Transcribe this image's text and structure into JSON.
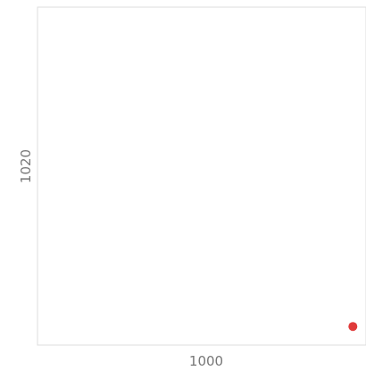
{
  "chart_data": {
    "type": "scatter",
    "title": "",
    "xlabel": "1000",
    "ylabel": "1020",
    "grid": false,
    "legend": "none",
    "colors": {
      "point": "#e03a3a",
      "frame": "#dddddd",
      "label": "#777777"
    },
    "xlim": [
      0,
      1
    ],
    "ylim": [
      0,
      1
    ],
    "series": [
      {
        "points": [
          {
            "x": 0.96,
            "y": 0.055
          }
        ]
      }
    ]
  }
}
